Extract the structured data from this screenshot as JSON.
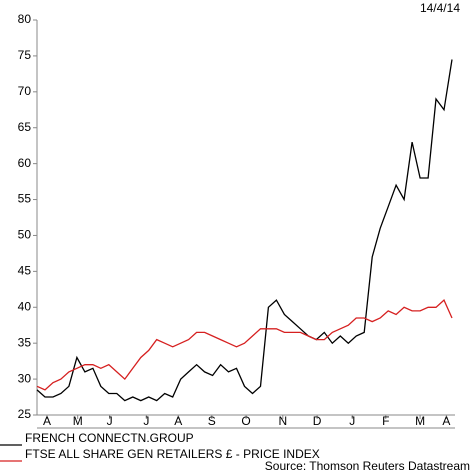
{
  "chart_data": {
    "type": "line",
    "date": "14/4/14",
    "source": "Source: Thomson Reuters Datastream",
    "x": [
      0,
      1,
      2,
      3,
      4,
      5,
      6,
      7,
      8,
      9,
      10,
      11,
      12,
      13,
      14,
      15,
      16,
      17,
      18,
      19,
      20,
      21,
      22,
      23,
      24,
      25,
      26,
      27,
      28,
      29,
      30,
      31,
      32,
      33,
      34,
      35,
      36,
      37,
      38,
      39,
      40,
      41,
      42,
      43,
      44,
      45,
      46,
      47,
      48,
      49,
      50,
      51,
      52
    ],
    "xlim": [
      0,
      52
    ],
    "xticks": [
      {
        "value": 1.25,
        "label": "A"
      },
      {
        "value": 5.1,
        "label": "M"
      },
      {
        "value": 9.1,
        "label": "J"
      },
      {
        "value": 13.7,
        "label": "J"
      },
      {
        "value": 17.7,
        "label": "A"
      },
      {
        "value": 21.9,
        "label": "S"
      },
      {
        "value": 26.2,
        "label": "O"
      },
      {
        "value": 30.8,
        "label": "N"
      },
      {
        "value": 35.1,
        "label": "D"
      },
      {
        "value": 39.5,
        "label": "J"
      },
      {
        "value": 43.7,
        "label": "F"
      },
      {
        "value": 48,
        "label": "M"
      },
      {
        "value": 51.3,
        "label": "A"
      }
    ],
    "ylim": [
      25,
      80
    ],
    "yticks": [
      25,
      30,
      35,
      40,
      45,
      50,
      55,
      60,
      65,
      70,
      75,
      80
    ],
    "series": [
      {
        "name": "FRENCH CONNECTN.GROUP",
        "color": "#000000",
        "values": [
          28.5,
          27.5,
          27.5,
          28,
          29,
          33,
          31,
          31.5,
          29,
          28,
          28,
          27,
          27.5,
          27,
          27.5,
          27,
          28,
          27.5,
          30,
          31,
          32,
          31,
          30.5,
          32,
          31,
          31.5,
          29,
          28,
          29,
          40,
          41,
          39,
          38,
          37,
          36,
          35.5,
          36.5,
          35,
          36,
          35,
          36,
          36.5,
          47,
          51,
          54,
          57,
          55,
          63,
          58,
          58,
          69,
          67.5,
          74.5
        ]
      },
      {
        "name": "FTSE ALL SHARE GEN RETAILERS £ - PRICE INDEX",
        "color": "#d62020",
        "values": [
          29,
          28.5,
          29.5,
          30,
          31,
          31.5,
          32,
          32,
          31.5,
          32,
          31,
          30,
          31.5,
          33,
          34,
          35.5,
          35,
          34.5,
          35,
          35.5,
          36.5,
          36.5,
          36,
          35.5,
          35,
          34.5,
          35,
          36,
          37,
          37,
          37,
          36.5,
          36.5,
          36.5,
          36,
          35.5,
          35.5,
          36.5,
          37,
          37.5,
          38.5,
          38.5,
          38,
          38.5,
          39.5,
          39,
          40,
          39.5,
          39.5,
          40,
          40,
          41,
          38.5
        ]
      }
    ]
  }
}
